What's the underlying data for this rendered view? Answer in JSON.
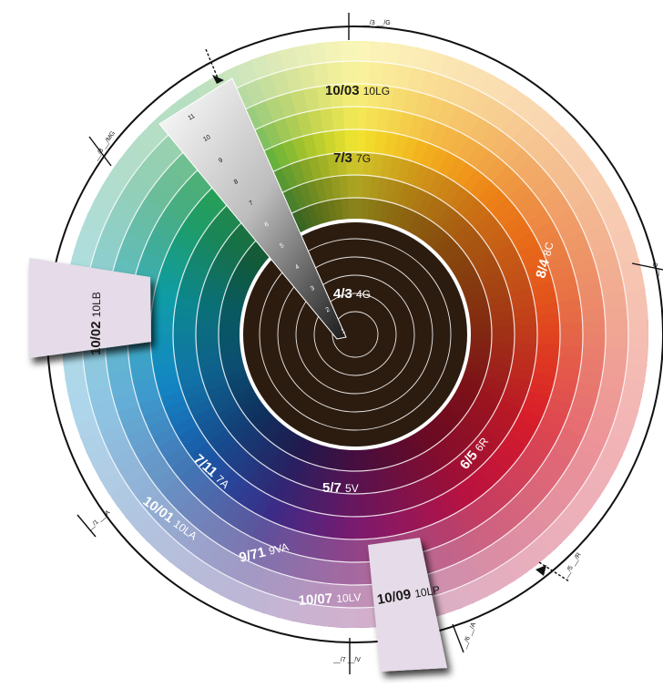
{
  "wheel": {
    "hue_colors": [
      {
        "hue": 0,
        "color": "#f2e530"
      },
      {
        "hue": 20,
        "color": "#f2b21e"
      },
      {
        "hue": 45,
        "color": "#ec8118"
      },
      {
        "hue": 80,
        "color": "#e3521c"
      },
      {
        "hue": 115,
        "color": "#d81e2a"
      },
      {
        "hue": 145,
        "color": "#b8123f"
      },
      {
        "hue": 180,
        "color": "#7a1a6e"
      },
      {
        "hue": 205,
        "color": "#3c2c86"
      },
      {
        "hue": 230,
        "color": "#1b56a4"
      },
      {
        "hue": 255,
        "color": "#1486c4"
      },
      {
        "hue": 280,
        "color": "#0f9ca8"
      },
      {
        "hue": 305,
        "color": "#1f9c66"
      },
      {
        "hue": 325,
        "color": "#2da14a"
      },
      {
        "hue": 345,
        "color": "#a5c42c"
      },
      {
        "hue": 360,
        "color": "#f2e530"
      }
    ],
    "center_color": "#2c1c10",
    "ring_line_color": "#ffffff"
  },
  "labels": {
    "l1": {
      "code": "10/03",
      "name": "10LG"
    },
    "l2": {
      "code": "7/3",
      "name": "7G"
    },
    "l3": {
      "code": "8/4",
      "name": "8C"
    },
    "l4": {
      "code": "4/3",
      "name": "4G"
    },
    "l5": {
      "code": "6/5",
      "name": "6R"
    },
    "l6": {
      "code": "5/7",
      "name": "5V"
    },
    "l7": {
      "code": "7/11",
      "name": "7A"
    },
    "l8": {
      "code": "10/01",
      "name": "10LA"
    },
    "l9": {
      "code": "9/71",
      "name": "9VA"
    },
    "l10": {
      "code": "10/07",
      "name": "10LV"
    }
  },
  "callouts": {
    "left": {
      "code": "10/02",
      "name": "10LB"
    },
    "bottom": {
      "code": "10/09",
      "name": "10LP"
    }
  },
  "value_scale": [
    "11",
    "10",
    "9",
    "8",
    "7",
    "6",
    "5",
    "4",
    "3",
    "2",
    "1"
  ],
  "ticks": [
    {
      "text": "__/3 __/G"
    },
    {
      "text": "__/C"
    },
    {
      "text": "__/5 __/R"
    },
    {
      "text": "__/6 __/A"
    },
    {
      "text": "__/7 __/V"
    },
    {
      "text": "__/1 __/A"
    },
    {
      "text": "__/8 __/MG"
    }
  ]
}
